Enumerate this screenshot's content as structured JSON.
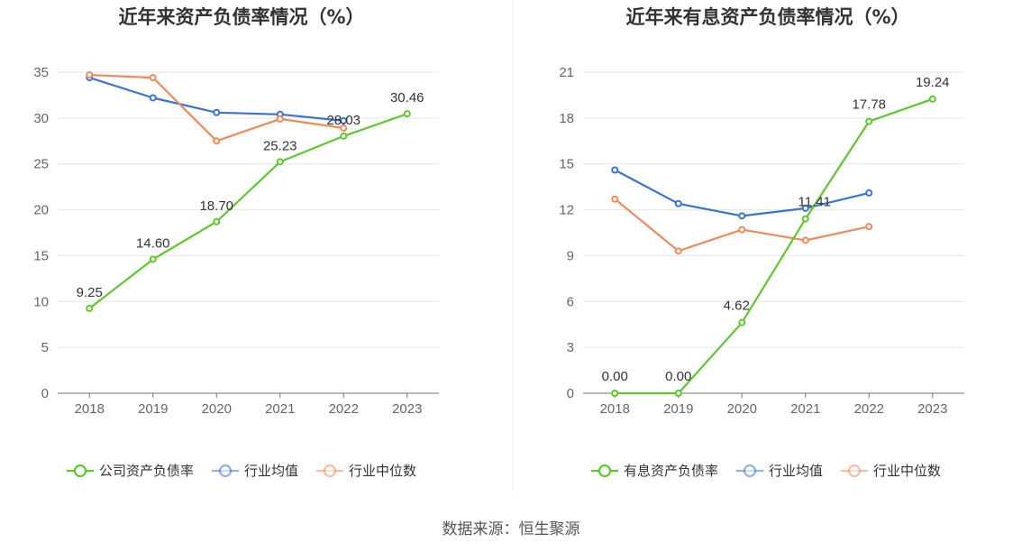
{
  "source": "数据来源：恒生聚源",
  "chart_data": [
    {
      "type": "line",
      "title": "近年来资产负债率情况（%）",
      "categories": [
        "2018",
        "2019",
        "2020",
        "2021",
        "2022",
        "2023"
      ],
      "ylim": [
        0,
        35
      ],
      "yticks": [
        0,
        5,
        10,
        15,
        20,
        25,
        30,
        35
      ],
      "grid": true,
      "legend_position": "bottom",
      "series": [
        {
          "name": "公司资产负债率",
          "color": "#5ec82f",
          "values": [
            9.25,
            14.6,
            18.7,
            25.23,
            28.03,
            30.46
          ],
          "labels": [
            "9.25",
            "14.60",
            "18.70",
            "25.23",
            "28.03",
            "30.46"
          ]
        },
        {
          "name": "行业均值",
          "color": "#3a72d8",
          "values": [
            34.4,
            32.2,
            30.6,
            30.4,
            29.7,
            null
          ]
        },
        {
          "name": "行业中位数",
          "color": "#f08a5a",
          "values": [
            34.7,
            34.4,
            27.5,
            29.9,
            28.9,
            null
          ]
        }
      ]
    },
    {
      "type": "line",
      "title": "近年来有息资产负债率情况（%）",
      "categories": [
        "2018",
        "2019",
        "2020",
        "2021",
        "2022",
        "2023"
      ],
      "ylim": [
        0,
        21
      ],
      "yticks": [
        0,
        3,
        6,
        9,
        12,
        15,
        18,
        21
      ],
      "grid": true,
      "legend_position": "bottom",
      "series": [
        {
          "name": "有息资产负债率",
          "color": "#5ec82f",
          "values": [
            0.0,
            0.0,
            4.62,
            11.41,
            17.78,
            19.24
          ],
          "labels": [
            "0.00",
            "0.00",
            "4.62",
            "11.41",
            "17.78",
            "19.24"
          ]
        },
        {
          "name": "行业均值",
          "color": "#3a72d8",
          "values": [
            14.6,
            12.4,
            11.6,
            12.1,
            13.1,
            null
          ]
        },
        {
          "name": "行业中位数",
          "color": "#f08a5a",
          "values": [
            12.7,
            9.3,
            10.7,
            10.0,
            10.9,
            null
          ]
        }
      ]
    }
  ]
}
